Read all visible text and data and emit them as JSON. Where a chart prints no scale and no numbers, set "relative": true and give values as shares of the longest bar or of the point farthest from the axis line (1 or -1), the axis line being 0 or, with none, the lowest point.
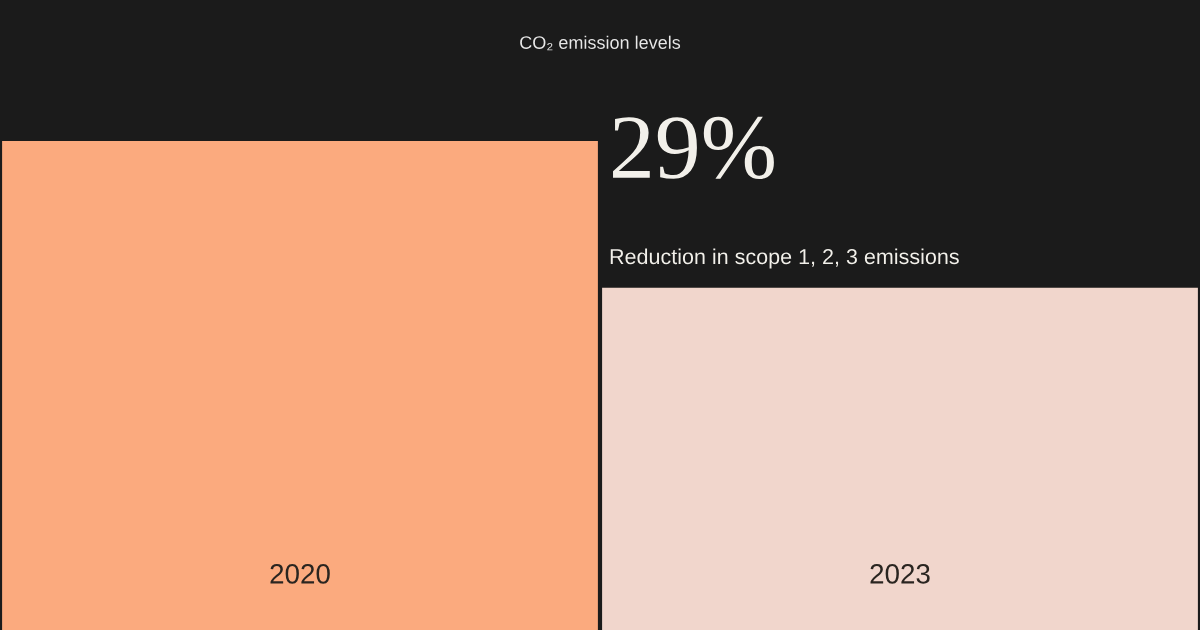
{
  "chart_data": {
    "type": "bar",
    "title": "CO₂ emission levels",
    "categories": [
      "2020",
      "2023"
    ],
    "values": [
      1,
      0.7
    ],
    "colors": [
      "#fbaa7e",
      "#f1d6cc"
    ],
    "relative": true,
    "annotations": [
      "29%",
      "Reduction in scope 1, 2, 3 emissions"
    ]
  }
}
